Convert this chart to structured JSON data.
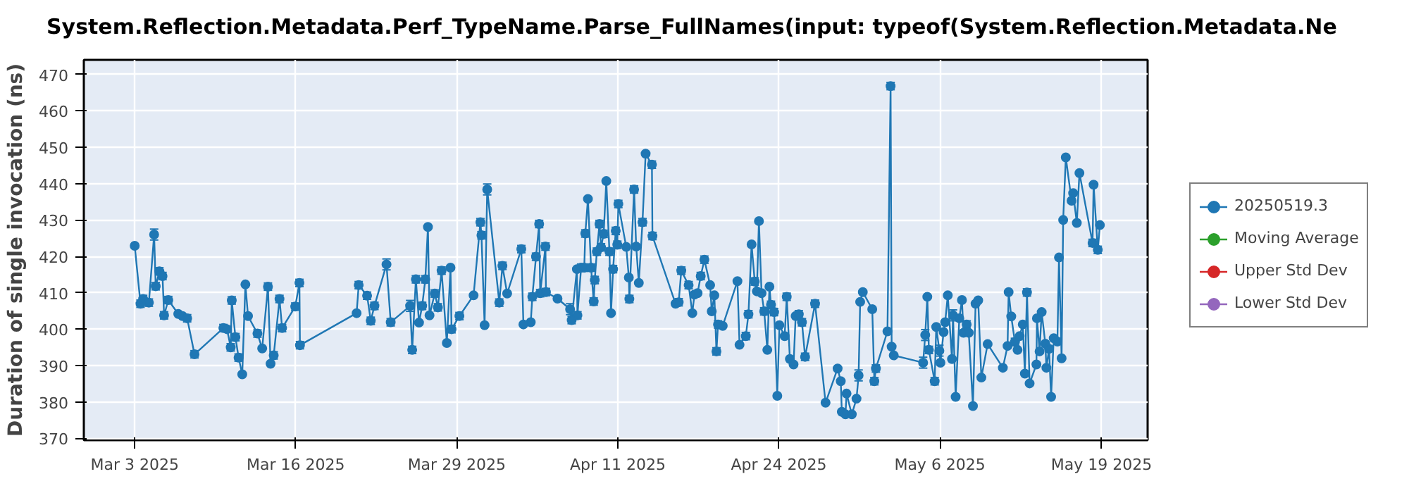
{
  "chart_data": {
    "type": "line",
    "title": "System.Reflection.Metadata.Perf_TypeName.Parse_FullNames(input: typeof(System.Reflection.Metadata.Ne",
    "ylabel": "Duration of single invocation (ns)",
    "xlim": [
      "2025-02-27T21:00",
      "2025-05-23T09:00"
    ],
    "ylim": [
      369.5,
      474
    ],
    "xticks": [
      {
        "value": "2025-03-03T22:00",
        "label": "Mar 3 2025"
      },
      {
        "value": "2025-03-16T17:00",
        "label": "Mar 16 2025"
      },
      {
        "value": "2025-03-29T12:00",
        "label": "Mar 29 2025"
      },
      {
        "value": "2025-04-11T07:00",
        "label": "Apr 11 2025"
      },
      {
        "value": "2025-04-24T02:00",
        "label": "Apr 24 2025"
      },
      {
        "value": "2025-05-06T21:00",
        "label": "May 6 2025"
      },
      {
        "value": "2025-05-19T17:00",
        "label": "May 19 2025"
      }
    ],
    "yticks": [
      370,
      380,
      390,
      400,
      410,
      420,
      430,
      440,
      450,
      460,
      470
    ],
    "grid": true,
    "legend": "right",
    "marker": "circle",
    "line_style": "solid",
    "x": [
      "2025-03-03T22:00",
      "2025-03-04T09:00",
      "2025-03-04T14:00",
      "2025-03-05T01:00",
      "2025-03-05T11:00",
      "2025-03-05T14:00",
      "2025-03-05T21:00",
      "2025-03-06T03:00",
      "2025-03-06T06:00",
      "2025-03-06T14:00",
      "2025-03-07T09:00",
      "2025-03-07T17:00",
      "2025-03-08T02:00",
      "2025-03-08T16:00",
      "2025-03-10T23:00",
      "2025-03-11T06:00",
      "2025-03-11T13:00",
      "2025-03-11T15:00",
      "2025-03-11T22:00",
      "2025-03-12T04:00",
      "2025-03-12T11:00",
      "2025-03-12T17:00",
      "2025-03-12T22:00",
      "2025-03-13T16:00",
      "2025-03-14T01:00",
      "2025-03-14T12:00",
      "2025-03-14T17:00",
      "2025-03-14T23:00",
      "2025-03-15T10:00",
      "2025-03-15T15:00",
      "2025-03-16T16:00",
      "2025-03-17T00:00",
      "2025-03-17T01:00",
      "2025-03-21T13:00",
      "2025-03-21T17:00",
      "2025-03-22T09:00",
      "2025-03-22T16:00",
      "2025-03-22T23:00",
      "2025-03-23T22:00",
      "2025-03-24T06:00",
      "2025-03-25T19:00",
      "2025-03-25T23:00",
      "2025-03-26T06:00",
      "2025-03-26T12:00",
      "2025-03-26T18:00",
      "2025-03-27T00:00",
      "2025-03-27T05:00",
      "2025-03-27T08:00",
      "2025-03-27T18:00",
      "2025-03-28T00:00",
      "2025-03-28T07:00",
      "2025-03-28T17:00",
      "2025-03-29T00:00",
      "2025-03-29T02:00",
      "2025-03-29T17:00",
      "2025-03-30T20:00",
      "2025-03-31T09:00",
      "2025-03-31T11:00",
      "2025-03-31T17:00",
      "2025-03-31T22:00",
      "2025-04-01T21:00",
      "2025-04-02T03:00",
      "2025-04-02T12:00",
      "2025-04-03T15:00",
      "2025-04-03T19:00",
      "2025-04-04T09:00",
      "2025-04-04T12:00",
      "2025-04-04T19:00",
      "2025-04-05T01:00",
      "2025-04-05T03:00",
      "2025-04-05T13:00",
      "2025-04-05T14:00",
      "2025-04-06T12:00",
      "2025-04-07T12:00",
      "2025-04-07T15:00",
      "2025-04-08T01:00",
      "2025-04-08T02:00",
      "2025-04-08T09:00",
      "2025-04-08T15:00",
      "2025-04-08T17:00",
      "2025-04-08T22:00",
      "2025-04-09T04:00",
      "2025-04-09T09:00",
      "2025-04-09T11:00",
      "2025-04-09T15:00",
      "2025-04-09T20:00",
      "2025-04-09T23:00",
      "2025-04-10T04:00",
      "2025-04-10T09:00",
      "2025-04-10T15:00",
      "2025-04-10T18:00",
      "2025-04-10T22:00",
      "2025-04-11T03:00",
      "2025-04-11T06:00",
      "2025-04-11T08:00",
      "2025-04-11T23:00",
      "2025-04-12T04:00",
      "2025-04-12T05:00",
      "2025-04-12T14:00",
      "2025-04-12T18:00",
      "2025-04-12T23:00",
      "2025-04-13T06:00",
      "2025-04-13T12:00",
      "2025-04-14T00:00",
      "2025-04-14T01:00",
      "2025-04-15T21:00",
      "2025-04-16T03:00",
      "2025-04-16T08:00",
      "2025-04-16T22:00",
      "2025-04-17T05:00",
      "2025-04-17T09:00",
      "2025-04-17T15:00",
      "2025-04-17T21:00",
      "2025-04-18T04:00",
      "2025-04-18T15:00",
      "2025-04-18T18:00",
      "2025-04-18T23:00",
      "2025-04-19T03:00",
      "2025-04-19T06:00",
      "2025-04-19T15:00",
      "2025-04-20T19:00",
      "2025-04-20T23:00",
      "2025-04-21T11:00",
      "2025-04-21T16:00",
      "2025-04-21T22:00",
      "2025-04-22T04:00",
      "2025-04-22T08:00",
      "2025-04-22T12:00",
      "2025-04-22T17:00",
      "2025-04-22T22:00",
      "2025-04-23T04:00",
      "2025-04-23T08:00",
      "2025-04-23T11:00",
      "2025-04-23T17:00",
      "2025-04-23T23:00",
      "2025-04-24T03:00",
      "2025-04-24T13:00",
      "2025-04-24T17:00",
      "2025-04-24T23:00",
      "2025-04-25T06:00",
      "2025-04-25T10:00",
      "2025-04-25T16:00",
      "2025-04-25T22:00",
      "2025-04-26T04:00",
      "2025-04-26T23:00",
      "2025-04-27T19:00",
      "2025-04-28T18:00",
      "2025-04-29T00:00",
      "2025-04-29T02:00",
      "2025-04-29T09:00",
      "2025-04-29T11:00",
      "2025-04-29T21:00",
      "2025-04-30T06:00",
      "2025-04-30T10:00",
      "2025-04-30T13:00",
      "2025-04-30T18:00",
      "2025-05-01T12:00",
      "2025-05-01T16:00",
      "2025-05-01T19:00",
      "2025-05-02T17:00",
      "2025-05-02T23:00",
      "2025-05-03T01:00",
      "2025-05-03T05:00",
      "2025-05-05T13:00",
      "2025-05-05T17:00",
      "2025-05-05T21:00",
      "2025-05-06T00:00",
      "2025-05-06T11:00",
      "2025-05-06T14:00",
      "2025-05-06T20:00",
      "2025-05-06T22:00",
      "2025-05-07T04:00",
      "2025-05-07T07:00",
      "2025-05-07T12:00",
      "2025-05-07T20:00",
      "2025-05-07T22:00",
      "2025-05-08T03:00",
      "2025-05-08T10:00",
      "2025-05-08T15:00",
      "2025-05-08T18:00",
      "2025-05-09T00:00",
      "2025-05-09T04:00",
      "2025-05-09T12:00",
      "2025-05-09T17:00",
      "2025-05-09T22:00",
      "2025-05-10T04:00",
      "2025-05-10T16:00",
      "2025-05-11T21:00",
      "2025-05-12T06:00",
      "2025-05-12T08:00",
      "2025-05-12T13:00",
      "2025-05-12T20:00",
      "2025-05-13T01:00",
      "2025-05-13T05:00",
      "2025-05-13T11:00",
      "2025-05-13T15:00",
      "2025-05-13T19:00",
      "2025-05-14T00:00",
      "2025-05-14T13:00",
      "2025-05-14T14:00",
      "2025-05-14T19:00",
      "2025-05-14T23:00",
      "2025-05-15T06:00",
      "2025-05-15T08:00",
      "2025-05-15T13:00",
      "2025-05-15T17:00",
      "2025-05-15T22:00",
      "2025-05-16T05:00",
      "2025-05-16T08:00",
      "2025-05-16T13:00",
      "2025-05-16T16:00",
      "2025-05-16T21:00",
      "2025-05-17T08:00",
      "2025-05-17T11:00",
      "2025-05-17T18:00",
      "2025-05-17T23:00",
      "2025-05-19T00:00",
      "2025-05-19T02:00",
      "2025-05-19T10:00",
      "2025-05-19T14:00"
    ],
    "series": [
      {
        "name": "20250519.3",
        "color": "#1f77b4",
        "values": [
          422.9,
          407,
          408.3,
          407.3,
          426,
          411.8,
          415.9,
          414.6,
          403.8,
          408,
          404.2,
          403.6,
          403,
          393.1,
          400.3,
          400,
          395,
          407.9,
          397.8,
          392.2,
          387.6,
          412.3,
          403.6,
          398.8,
          394.7,
          411.7,
          390.5,
          392.8,
          408.3,
          400.3,
          406.2,
          412.7,
          395.6,
          404.4,
          412.1,
          409.2,
          402.3,
          406.4,
          417.8,
          401.9,
          406.4,
          394.3,
          413.7,
          401.8,
          406.4,
          413.7,
          428.1,
          403.8,
          409.8,
          406,
          416.1,
          396.2,
          416.9,
          400,
          403.6,
          409.3,
          429.4,
          425.8,
          401.1,
          438.4,
          407.3,
          417.4,
          409.8,
          422,
          401.3,
          401.9,
          408.9,
          419.9,
          428.9,
          409.9,
          422.7,
          410.2,
          408.4,
          405.5,
          402.5,
          416.5,
          403.8,
          416.9,
          416.9,
          426.3,
          435.8,
          416.9,
          407.6,
          413.5,
          421.3,
          428.9,
          422.5,
          426.2,
          440.7,
          421.3,
          404.4,
          416.5,
          427,
          423.2,
          434.4,
          422.6,
          414.2,
          408.3,
          438.4,
          422.7,
          412.7,
          429.4,
          448.2,
          445.2,
          425.6,
          407,
          407.4,
          416.1,
          412.1,
          404.4,
          409.5,
          409.9,
          414.6,
          419.1,
          412.1,
          404.9,
          409.3,
          393.9,
          401.3,
          400.9,
          413.2,
          395.7,
          398.1,
          404.1,
          423.3,
          413.1,
          410.4,
          429.7,
          409.9,
          404.9,
          394.3,
          411.7,
          406.7,
          404.7,
          381.7,
          401.1,
          398.1,
          408.9,
          391.8,
          390.3,
          403.6,
          404.1,
          401.9,
          392.4,
          407,
          379.8,
          389.2,
          385.7,
          377.3,
          376.6,
          382.3,
          376.6,
          380.9,
          387.3,
          407.5,
          410.2,
          405.5,
          385.7,
          389.2,
          399.4,
          466.8,
          395.2,
          392.8,
          390.8,
          398.4,
          408.9,
          394.3,
          385.7,
          400.6,
          394.1,
          390.8,
          399.2,
          401.9,
          409.3,
          391.8,
          403.8,
          381.4,
          403,
          408,
          399,
          401.3,
          399,
          378.9,
          407,
          407.9,
          386.7,
          395.9,
          389.4,
          395.4,
          410.2,
          403.5,
          396.5,
          394.3,
          398.1,
          401.3,
          387.8,
          410.1,
          385.1,
          390.3,
          403,
          393.9,
          404.7,
          396,
          389.4,
          394.6,
          381.4,
          397.5,
          396.6,
          419.7,
          392,
          430,
          447.2,
          435.3,
          437.4,
          429.2,
          442.9,
          423.7,
          439.7,
          421.8,
          428.6
        ],
        "errors": [
          null,
          1,
          1,
          1,
          1.5,
          1,
          1,
          1,
          1,
          1,
          null,
          null,
          1,
          1,
          1,
          null,
          1,
          1,
          1,
          1,
          null,
          null,
          null,
          1,
          null,
          1,
          null,
          1,
          1,
          1,
          1,
          1,
          1,
          null,
          1,
          1,
          1,
          1,
          1.5,
          1,
          1.5,
          1,
          1,
          null,
          1,
          1,
          null,
          null,
          1,
          1,
          1,
          null,
          null,
          1,
          1,
          null,
          1,
          1,
          null,
          1.5,
          1,
          1,
          null,
          1,
          null,
          null,
          1,
          1,
          1,
          1,
          1,
          1,
          null,
          1.5,
          1,
          null,
          1,
          1,
          1,
          1,
          null,
          1,
          1,
          1,
          1,
          1,
          1,
          1,
          null,
          1,
          null,
          1,
          1,
          1,
          1,
          null,
          null,
          1,
          1,
          null,
          null,
          1,
          null,
          1,
          1,
          null,
          1,
          1,
          1,
          null,
          null,
          null,
          1,
          1,
          null,
          null,
          null,
          1,
          1,
          null,
          null,
          null,
          1,
          1,
          null,
          1,
          null,
          null,
          null,
          1,
          null,
          null,
          1,
          1,
          null,
          null,
          null,
          1,
          null,
          null,
          null,
          1,
          1,
          1,
          1,
          null,
          null,
          null,
          null,
          null,
          null,
          null,
          null,
          1.5,
          null,
          null,
          null,
          1,
          1,
          null,
          1,
          null,
          null,
          1.5,
          1.5,
          null,
          1,
          1,
          null,
          1.5,
          null,
          null,
          null,
          null,
          null,
          1.5,
          null,
          null,
          null,
          null,
          1,
          null,
          null,
          null,
          null,
          null,
          null,
          null,
          null,
          null,
          null,
          1,
          null,
          null,
          null,
          null,
          1,
          null,
          null,
          null,
          null,
          null,
          null,
          null,
          null,
          null,
          null,
          null,
          null,
          null,
          null,
          null,
          null,
          null,
          null,
          null,
          1,
          null,
          1,
          null
        ]
      },
      {
        "name": "Moving Average",
        "color": "#2ca02c",
        "values": [
          null,
          null,
          null,
          null,
          null,
          null,
          null,
          null,
          null,
          null,
          null,
          null,
          null,
          null,
          null,
          null,
          null,
          null,
          null,
          null,
          null,
          null,
          null,
          null,
          null,
          null,
          null,
          null,
          null,
          null,
          null,
          null,
          null,
          null,
          null,
          null,
          null,
          null,
          null,
          null,
          null,
          null,
          null,
          null,
          null,
          null,
          null,
          null,
          null,
          null,
          null,
          null,
          null,
          null,
          null,
          null,
          null,
          null,
          null,
          null,
          null,
          null,
          null,
          null,
          null,
          null,
          null,
          null,
          null,
          null,
          null,
          null,
          null,
          null,
          null,
          null,
          null,
          null,
          null,
          null,
          null,
          null,
          null,
          null,
          null,
          null,
          null,
          null,
          null,
          null,
          null,
          null,
          null,
          null,
          null,
          null,
          null,
          null,
          null,
          null,
          null,
          null,
          null,
          null,
          null,
          null,
          null,
          null,
          null,
          null,
          null,
          null,
          null,
          null,
          null,
          null,
          null,
          null,
          null,
          null,
          null,
          null,
          null,
          null,
          null,
          null,
          null,
          null,
          null,
          null,
          null,
          null,
          null,
          null,
          null,
          null,
          null,
          null,
          null,
          null,
          null,
          null,
          null,
          null,
          null,
          null,
          null,
          null,
          null,
          null,
          null,
          null,
          null,
          null,
          null,
          null,
          null,
          null,
          null,
          null,
          null,
          null,
          null,
          null,
          null,
          null,
          null,
          null,
          null,
          null,
          null,
          null,
          null,
          null,
          null,
          null,
          null,
          null,
          null,
          null,
          null,
          null,
          null,
          null,
          null,
          null,
          null,
          null,
          null,
          null,
          null,
          null,
          null,
          null,
          null,
          null,
          null,
          null,
          null,
          null,
          null,
          null,
          null,
          null,
          null,
          null,
          null,
          null,
          null,
          null,
          null,
          null,
          null,
          null,
          null,
          null,
          null,
          null,
          null,
          null
        ]
      },
      {
        "name": "Upper Std Dev",
        "color": "#d62728",
        "values": [
          null,
          null,
          null,
          null,
          null,
          null,
          null,
          null,
          null,
          null,
          null,
          null,
          null,
          null,
          null,
          null,
          null,
          null,
          null,
          null,
          null,
          null,
          null,
          null,
          null,
          null,
          null,
          null,
          null,
          null,
          null,
          null,
          null,
          null,
          null,
          null,
          null,
          null,
          null,
          null,
          null,
          null,
          null,
          null,
          null,
          null,
          null,
          null,
          null,
          null,
          null,
          null,
          null,
          null,
          null,
          null,
          null,
          null,
          null,
          null,
          null,
          null,
          null,
          null,
          null,
          null,
          null,
          null,
          null,
          null,
          null,
          null,
          null,
          null,
          null,
          null,
          null,
          null,
          null,
          null,
          null,
          null,
          null,
          null,
          null,
          null,
          null,
          null,
          null,
          null,
          null,
          null,
          null,
          null,
          null,
          null,
          null,
          null,
          null,
          null,
          null,
          null,
          null,
          null,
          null,
          null,
          null,
          null,
          null,
          null,
          null,
          null,
          null,
          null,
          null,
          null,
          null,
          null,
          null,
          null,
          null,
          null,
          null,
          null,
          null,
          null,
          null,
          null,
          null,
          null,
          null,
          null,
          null,
          null,
          null,
          null,
          null,
          null,
          null,
          null,
          null,
          null,
          null,
          null,
          null,
          null,
          null,
          null,
          null,
          null,
          null,
          null,
          null,
          null,
          null,
          null,
          null,
          null,
          null,
          null,
          null,
          null,
          null,
          null,
          null,
          null,
          null,
          null,
          null,
          null,
          null,
          null,
          null,
          null,
          null,
          null,
          null,
          null,
          null,
          null,
          null,
          null,
          null,
          null,
          null,
          null,
          null,
          null,
          null,
          null,
          null,
          null,
          null,
          null,
          null,
          null,
          null,
          null,
          null,
          null,
          null,
          null,
          null,
          null,
          null,
          null,
          null,
          null,
          null,
          null,
          null,
          null,
          null,
          null,
          null,
          null,
          null,
          null,
          null,
          null
        ]
      },
      {
        "name": "Lower Std Dev",
        "color": "#9467bd",
        "values": [
          null,
          null,
          null,
          null,
          null,
          null,
          null,
          null,
          null,
          null,
          null,
          null,
          null,
          null,
          null,
          null,
          null,
          null,
          null,
          null,
          null,
          null,
          null,
          null,
          null,
          null,
          null,
          null,
          null,
          null,
          null,
          null,
          null,
          null,
          null,
          null,
          null,
          null,
          null,
          null,
          null,
          null,
          null,
          null,
          null,
          null,
          null,
          null,
          null,
          null,
          null,
          null,
          null,
          null,
          null,
          null,
          null,
          null,
          null,
          null,
          null,
          null,
          null,
          null,
          null,
          null,
          null,
          null,
          null,
          null,
          null,
          null,
          null,
          null,
          null,
          null,
          null,
          null,
          null,
          null,
          null,
          null,
          null,
          null,
          null,
          null,
          null,
          null,
          null,
          null,
          null,
          null,
          null,
          null,
          null,
          null,
          null,
          null,
          null,
          null,
          null,
          null,
          null,
          null,
          null,
          null,
          null,
          null,
          null,
          null,
          null,
          null,
          null,
          null,
          null,
          null,
          null,
          null,
          null,
          null,
          null,
          null,
          null,
          null,
          null,
          null,
          null,
          null,
          null,
          null,
          null,
          null,
          null,
          null,
          null,
          null,
          null,
          null,
          null,
          null,
          null,
          null,
          null,
          null,
          null,
          null,
          null,
          null,
          null,
          null,
          null,
          null,
          null,
          null,
          null,
          null,
          null,
          null,
          null,
          null,
          null,
          null,
          null,
          null,
          null,
          null,
          null,
          null,
          null,
          null,
          null,
          null,
          null,
          null,
          null,
          null,
          null,
          null,
          null,
          null,
          null,
          null,
          null,
          null,
          null,
          null,
          null,
          null,
          null,
          null,
          null,
          null,
          null,
          null,
          null,
          null,
          null,
          null,
          null,
          null,
          null,
          null,
          null,
          null,
          null,
          null,
          null,
          null,
          null,
          null,
          null,
          null,
          null,
          null,
          null,
          null,
          null,
          null,
          null,
          null
        ]
      }
    ]
  }
}
